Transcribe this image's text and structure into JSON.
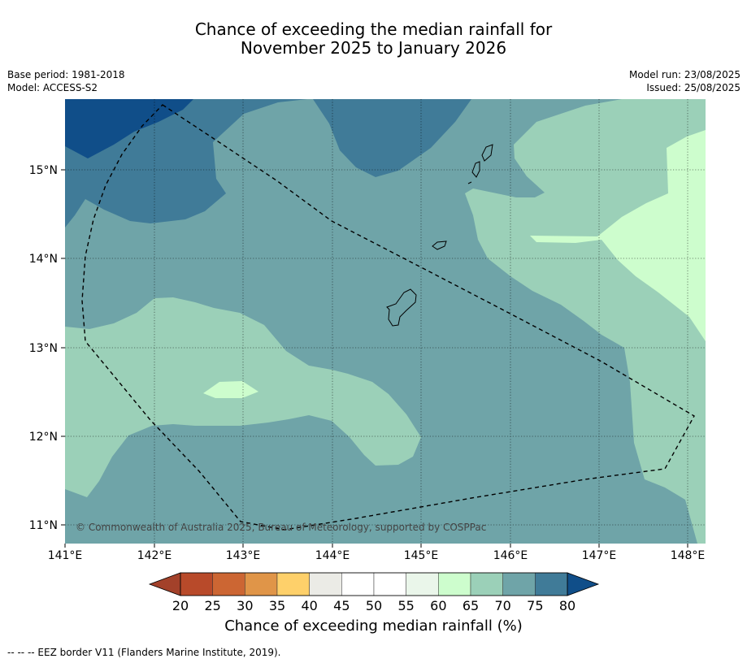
{
  "title": {
    "line1": "Chance of exceeding the median rainfall for",
    "line2": "November 2025 to January 2026"
  },
  "meta_left": {
    "base_period": "Base period: 1981-2018",
    "model": "Model: ACCESS-S2"
  },
  "meta_right": {
    "model_run": "Model run: 23/08/2025",
    "issued": "Issued: 25/08/2025"
  },
  "axes": {
    "lon_labels": [
      "141°E",
      "142°E",
      "143°E",
      "144°E",
      "145°E",
      "146°E",
      "147°E",
      "148°E"
    ],
    "lat_labels": [
      "15°N",
      "14°N",
      "13°N",
      "12°N",
      "11°N"
    ]
  },
  "copyright": "© Commonwealth of Australia 2025, Bureau of Meteorology, supported by COSPPac",
  "colorbar": {
    "ticks": [
      "20",
      "25",
      "30",
      "35",
      "40",
      "45",
      "50",
      "55",
      "60",
      "65",
      "70",
      "75",
      "80"
    ],
    "colors": [
      "#a3412a",
      "#b84a2a",
      "#cc6633",
      "#e09548",
      "#fed06a",
      "#ebebe6",
      "#ffffff",
      "#ffffff",
      "#eaf6ea",
      "#cdfdcd",
      "#9bd0b8",
      "#6fa4a8",
      "#407b98",
      "#104e89"
    ],
    "title": "Chance of exceeding median rainfall (%)"
  },
  "fill_colors": {
    "p60_65": "#cdfdcd",
    "p65_70": "#9bd0b8",
    "p70_75": "#6fa4a8",
    "p75_80": "#407b98",
    "p80": "#104e89"
  },
  "footer": "--  --  -- EEZ border V11 (Flanders Marine Institute, 2019)."
}
